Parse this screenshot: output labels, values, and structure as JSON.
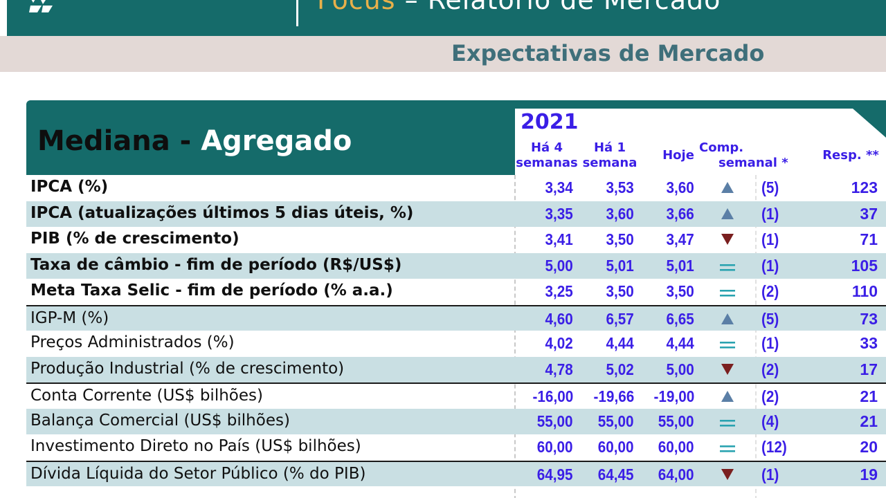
{
  "banner": {
    "title_part1": "Focus",
    "title_part2": " – Relatório de Mercado",
    "subtitle": "Expectativas de Mercado"
  },
  "table": {
    "title_part1": "Mediana - ",
    "title_part2": "Agregado",
    "year": "2021",
    "columns": {
      "col1_line1": "Há 4",
      "col1_line2": "semanas",
      "col2_line1": "Há 1",
      "col2_line2": "semana",
      "col3": "Hoje",
      "col4_line1": "Comp.",
      "col4_line2": "semanal *",
      "col5": "Resp. **"
    },
    "rows": [
      {
        "label": "IPCA (%)",
        "v1": "3,34",
        "v2": "3,53",
        "v3": "3,60",
        "trend": "up",
        "comp": "(5)",
        "resp": "123"
      },
      {
        "label": "IPCA (atualizações últimos 5 dias úteis, %)",
        "v1": "3,35",
        "v2": "3,60",
        "v3": "3,66",
        "trend": "up",
        "comp": "(1)",
        "resp": "37"
      },
      {
        "label": "PIB (% de crescimento)",
        "v1": "3,41",
        "v2": "3,50",
        "v3": "3,47",
        "trend": "down",
        "comp": "(1)",
        "resp": "71"
      },
      {
        "label": "Taxa de câmbio - fim de período (R$/US$)",
        "v1": "5,00",
        "v2": "5,01",
        "v3": "5,01",
        "trend": "equal",
        "comp": "(1)",
        "resp": "105"
      },
      {
        "label": "Meta Taxa Selic - fim de período (% a.a.)",
        "v1": "3,25",
        "v2": "3,50",
        "v3": "3,50",
        "trend": "equal",
        "comp": "(2)",
        "resp": "110"
      },
      {
        "label": "IGP-M (%)",
        "v1": "4,60",
        "v2": "6,57",
        "v3": "6,65",
        "trend": "up",
        "comp": "(5)",
        "resp": "73"
      },
      {
        "label": "Preços Administrados (%)",
        "v1": "4,02",
        "v2": "4,44",
        "v3": "4,44",
        "trend": "equal",
        "comp": "(1)",
        "resp": "33"
      },
      {
        "label": "Produção Industrial (% de crescimento)",
        "v1": "4,78",
        "v2": "5,02",
        "v3": "5,00",
        "trend": "down",
        "comp": "(2)",
        "resp": "17"
      },
      {
        "label": "Conta Corrente (US$ bilhões)",
        "v1": "-16,00",
        "v2": "-19,66",
        "v3": "-19,00",
        "trend": "up",
        "comp": "(2)",
        "resp": "21"
      },
      {
        "label": "Balança Comercial (US$ bilhões)",
        "v1": "55,00",
        "v2": "55,00",
        "v3": "55,00",
        "trend": "equal",
        "comp": "(4)",
        "resp": "21"
      },
      {
        "label": "Investimento Direto no País (US$ bilhões)",
        "v1": "60,00",
        "v2": "60,00",
        "v3": "60,00",
        "trend": "equal",
        "comp": "(12)",
        "resp": "20"
      },
      {
        "label": "Dívida Líquida do Setor Público (% do PIB)",
        "v1": "64,95",
        "v2": "64,45",
        "v3": "64,00",
        "trend": "down",
        "comp": "(1)",
        "resp": "19"
      }
    ]
  },
  "colors": {
    "banner_teal": "#156b6a",
    "row_shade": "#c9dfe3",
    "value_blue": "#3a1ee6",
    "up_arrow": "#5b7fa6",
    "down_arrow": "#7a1f1f",
    "equal_sign": "#2aa3b0"
  }
}
